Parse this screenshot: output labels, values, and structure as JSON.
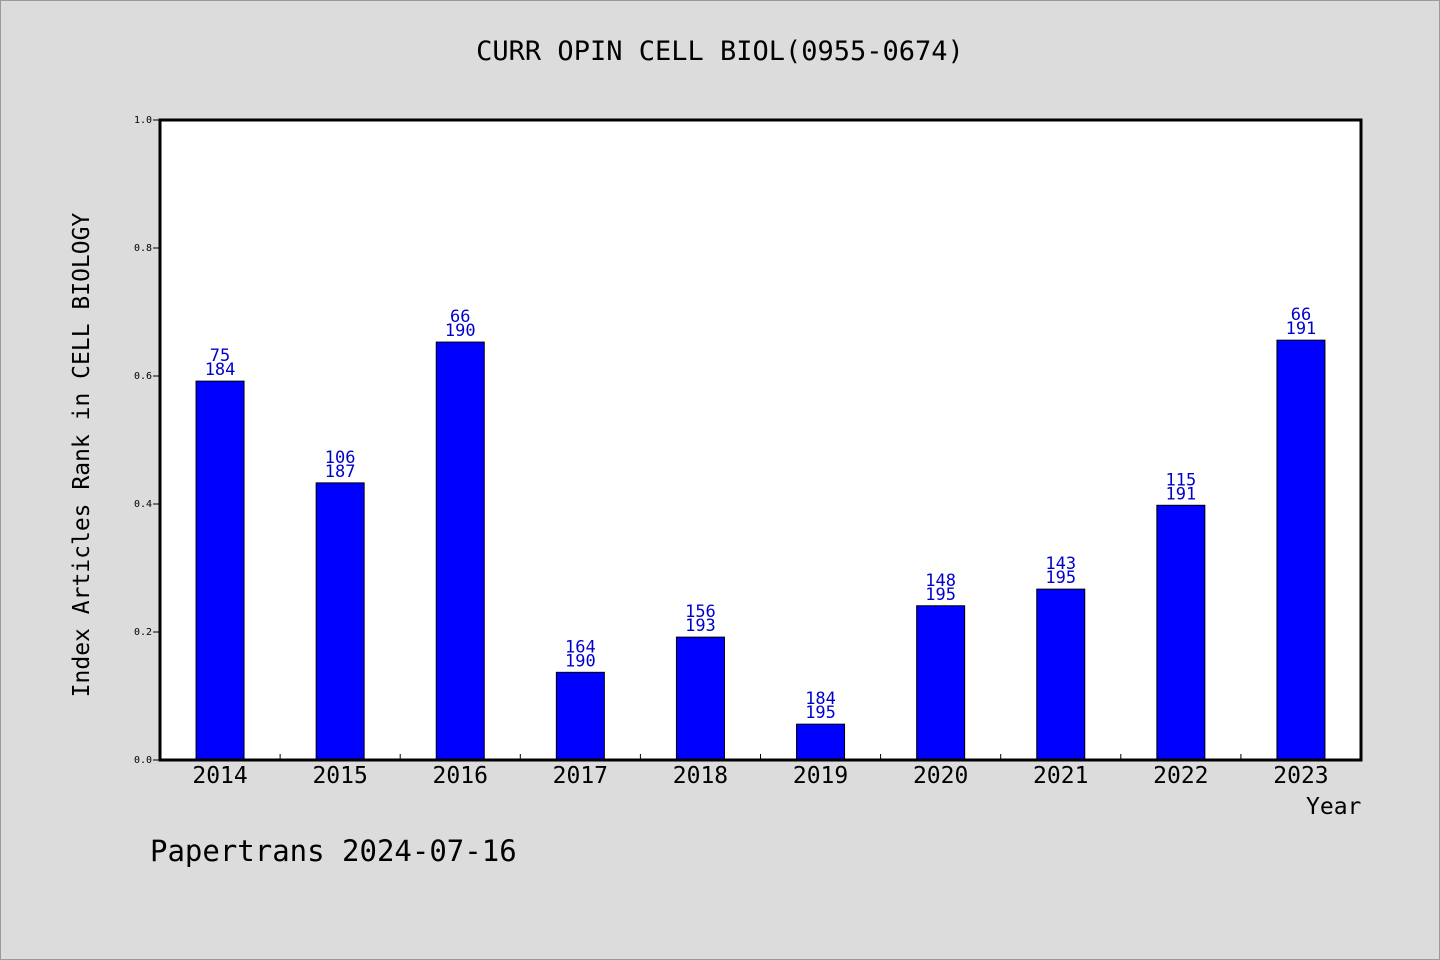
{
  "chart_data": {
    "type": "bar",
    "title": "CURR OPIN CELL BIOL(0955-0674)",
    "xlabel": "Year",
    "ylabel": "Index Articles Rank in CELL BIOLOGY",
    "ylim": [
      0,
      1.0
    ],
    "yticks": [
      "0.0",
      "0.2",
      "0.4",
      "0.6",
      "0.8",
      "1.0"
    ],
    "categories": [
      "2014",
      "2015",
      "2016",
      "2017",
      "2018",
      "2019",
      "2020",
      "2021",
      "2022",
      "2023"
    ],
    "values": [
      0.592,
      0.433,
      0.653,
      0.137,
      0.192,
      0.056,
      0.241,
      0.267,
      0.398,
      0.656
    ],
    "rank_labels": [
      "75",
      "106",
      "66",
      "164",
      "156",
      "184",
      "148",
      "143",
      "115",
      "66"
    ],
    "total_labels": [
      "184",
      "187",
      "190",
      "190",
      "193",
      "195",
      "195",
      "195",
      "191",
      "191"
    ],
    "bar_color": "#0000ff",
    "label_color": "#0000cc",
    "grid": false
  },
  "footer": {
    "watermark": "Papertrans 2024-07-16"
  }
}
